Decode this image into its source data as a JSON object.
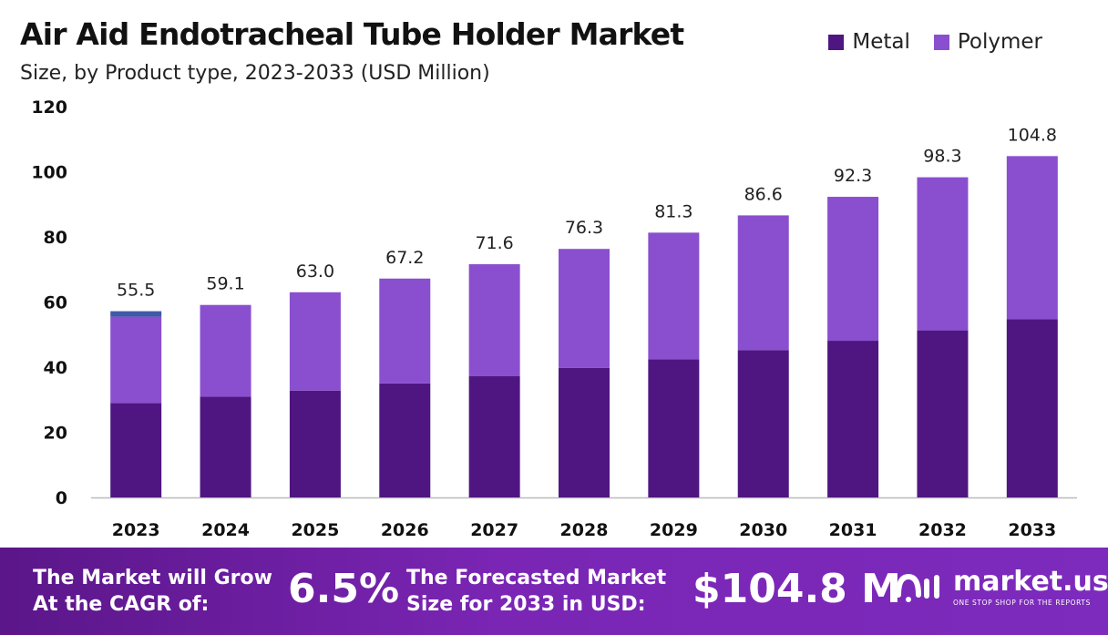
{
  "header": {
    "title": "Air Aid Endotracheal Tube Holder Market",
    "subtitle": "Size, by Product type, 2023-2033 (USD Million)"
  },
  "colors": {
    "metal": "#4f1681",
    "polymer": "#8a4fcf",
    "highlight": "#3f5aa6",
    "axis": "#bbbbbb"
  },
  "chart_data": {
    "type": "bar",
    "stacked": true,
    "categories": [
      "2023",
      "2024",
      "2025",
      "2026",
      "2027",
      "2028",
      "2029",
      "2030",
      "2031",
      "2032",
      "2033"
    ],
    "series": [
      {
        "name": "Metal",
        "values": [
          29.0,
          30.9,
          32.8,
          35.0,
          37.3,
          39.8,
          42.4,
          45.2,
          48.1,
          51.3,
          54.7
        ]
      },
      {
        "name": "Polymer",
        "values": [
          26.5,
          28.2,
          30.2,
          32.2,
          34.3,
          36.5,
          38.9,
          41.4,
          44.2,
          47.0,
          50.1
        ]
      }
    ],
    "totals": [
      "55.5",
      "59.1",
      "63.0",
      "67.2",
      "71.6",
      "76.3",
      "81.3",
      "86.6",
      "92.3",
      "98.3",
      "104.8"
    ],
    "ylim": [
      0,
      120
    ],
    "yticks": [
      "0",
      "20",
      "40",
      "60",
      "80",
      "100",
      "120"
    ],
    "grid": false,
    "legend": "top-right"
  },
  "footer": {
    "cagr_label_line1": "The Market will Grow",
    "cagr_label_line2": "At the CAGR of:",
    "cagr_value": "6.5%",
    "forecast_label_line1": "The Forecasted Market",
    "forecast_label_line2": "Size for 2033 in USD:",
    "forecast_value": "$104.8 M",
    "brand_name": "market.us",
    "brand_tagline": "ONE STOP SHOP FOR THE REPORTS"
  }
}
